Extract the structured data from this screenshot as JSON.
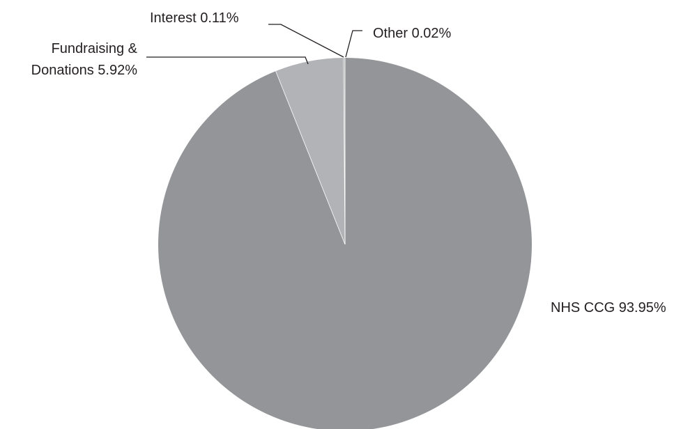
{
  "chart_data": {
    "type": "pie",
    "start": "12 o'clock",
    "direction": "clockwise",
    "legend": "none",
    "slices": [
      {
        "label": "NHS CCG",
        "value": 93.95,
        "display": "NHS CCG 93.95%",
        "color": "#939598"
      },
      {
        "label": "Fundraising & Donations",
        "value": 5.92,
        "display_lines": [
          "Fundraising &",
          "Donations 5.92%"
        ],
        "color": "#b2b3b6"
      },
      {
        "label": "Interest",
        "value": 0.11,
        "display": "Interest 0.11%",
        "color": "#939598"
      },
      {
        "label": "Other",
        "value": 0.02,
        "display": "Other 0.02%",
        "color": "#939598"
      }
    ]
  }
}
